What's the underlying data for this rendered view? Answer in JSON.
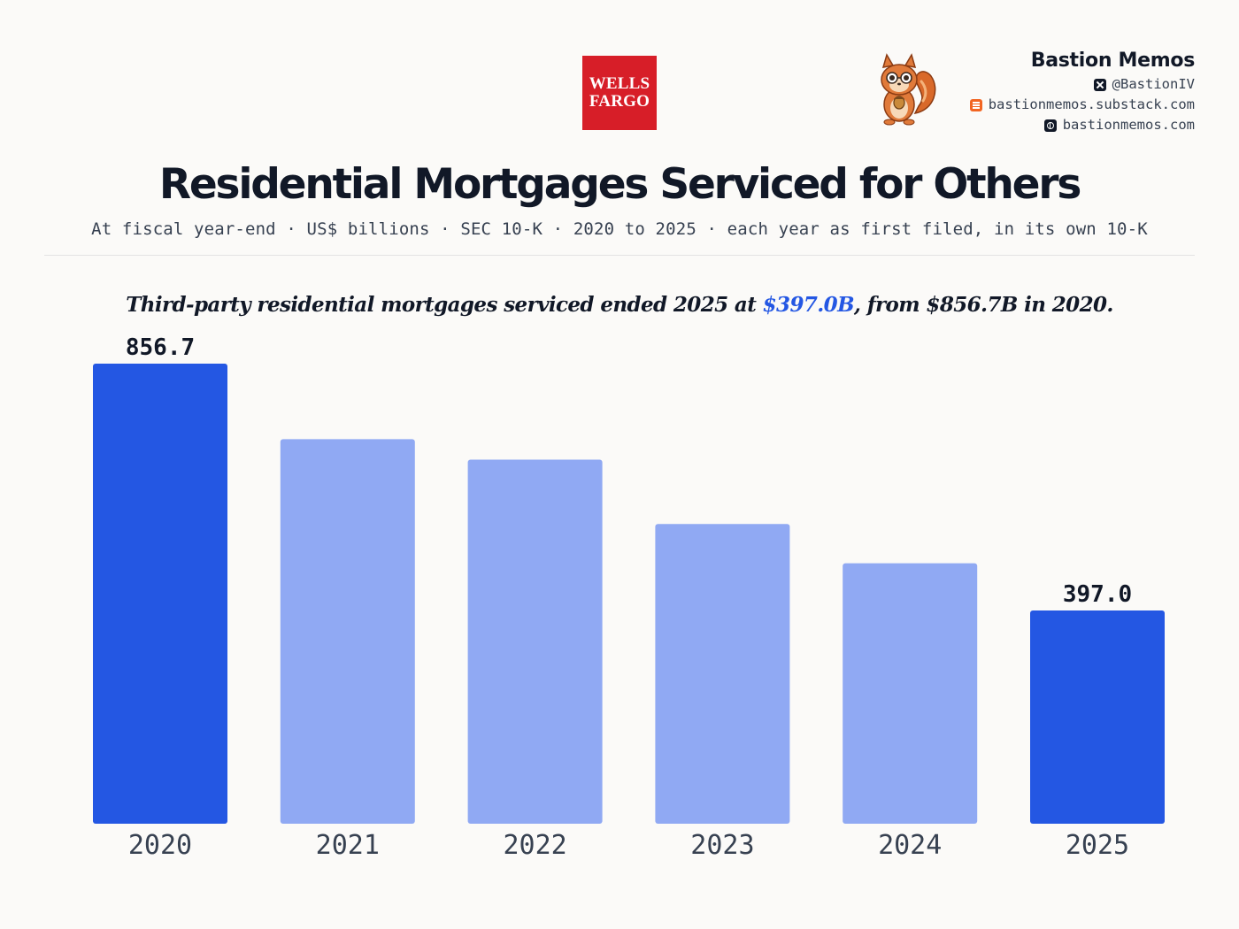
{
  "logo": {
    "line1": "WELLS",
    "line2": "FARGO",
    "color": "#d71e28"
  },
  "brand": {
    "name": "Bastion Memos",
    "links": [
      {
        "icon": "x-icon",
        "text": "@BastionIV"
      },
      {
        "icon": "substack-icon",
        "text": "bastionmemos.substack.com"
      },
      {
        "icon": "globe-icon",
        "text": "bastionmemos.com"
      }
    ]
  },
  "header": {
    "title": "Residential Mortgages Serviced for Others",
    "subtitle": "At fiscal year-end · US$ billions · SEC 10-K · 2020 to 2025 · each year as first filed, in its own 10-K"
  },
  "headline": {
    "prefix": "Third-party residential mortgages serviced ended 2025 at ",
    "highlight": "$397.0B",
    "suffix": ", from $856.7B in 2020."
  },
  "colors": {
    "highlight_bar": "#2457e3",
    "muted_bar": "#90a9f3",
    "accent_text": "#2457e3"
  },
  "chart_data": {
    "type": "bar",
    "title": "Residential Mortgages Serviced for Others",
    "categories": [
      "2020",
      "2021",
      "2022",
      "2023",
      "2024",
      "2025"
    ],
    "values": [
      856.7,
      716.0,
      678.0,
      558.0,
      485.0,
      397.0
    ],
    "value_labels": [
      "856.7",
      "",
      "",
      "",
      "",
      "397.0"
    ],
    "highlighted": [
      true,
      false,
      false,
      false,
      false,
      true
    ],
    "ylim": [
      0,
      856.7
    ],
    "xlabel": "",
    "ylabel": "",
    "grid": false,
    "legend": "none"
  }
}
